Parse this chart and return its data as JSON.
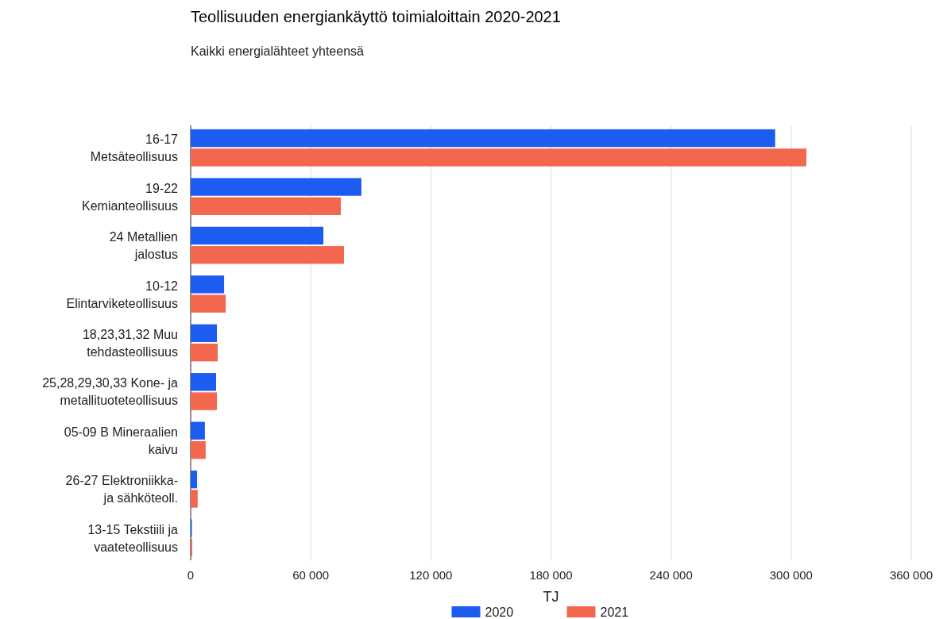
{
  "chart_data": {
    "type": "bar",
    "orientation": "horizontal",
    "title": "Teollisuuden energiankäyttö toimialoittain 2020-2021",
    "subtitle": "Kaikki energialähteet yhteensä",
    "xlabel": "TJ",
    "categories": [
      "16-17\nMetsäteollisuus",
      "19-22\nKemianteollisuus",
      "24 Metallien\njalostus",
      "10-12\nElintarviketeollisuus",
      "18,23,31,32 Muu\ntehdasteollisuus",
      "25,28,29,30,33 Kone- ja\nmetallituoteteollisuus",
      "05-09 B Mineraalien\nkaivu",
      "26-27 Elektroniikka-\nja sähköteoll.",
      "13-15 Tekstiili ja\nvaateteollisuus"
    ],
    "series": [
      {
        "name": "2020",
        "color": "#1c5cf0",
        "values": [
          292000,
          85300,
          66300,
          16700,
          13100,
          12700,
          7100,
          3200,
          600
        ]
      },
      {
        "name": "2021",
        "color": "#f2674e",
        "values": [
          307600,
          75000,
          76600,
          17500,
          13500,
          13100,
          7500,
          3500,
          800
        ]
      }
    ],
    "xlim": [
      0,
      360000
    ],
    "xticks": [
      {
        "value": 0,
        "label": "0"
      },
      {
        "value": 60000,
        "label": "60 000"
      },
      {
        "value": 120000,
        "label": "120 000"
      },
      {
        "value": 180000,
        "label": "180 000"
      },
      {
        "value": 240000,
        "label": "240 000"
      },
      {
        "value": 300000,
        "label": "300 000"
      },
      {
        "value": 360000,
        "label": "360 000"
      }
    ],
    "grid": "x",
    "legend": "bottom"
  }
}
